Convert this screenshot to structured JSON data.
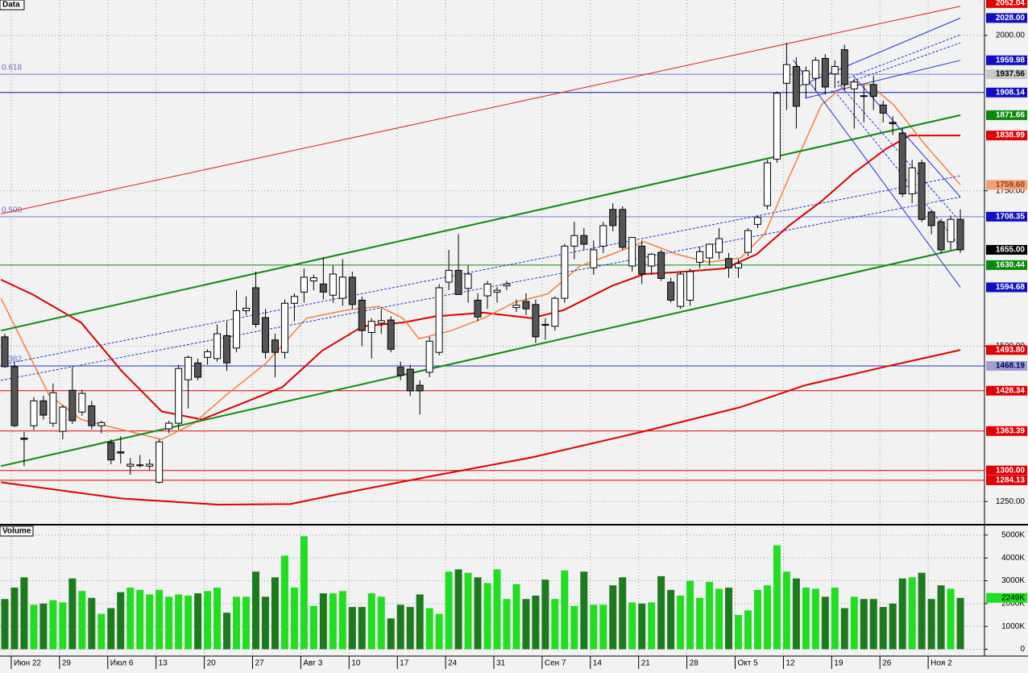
{
  "chart_data": [
    {
      "type": "candlestick",
      "title": "Data",
      "categories": [
        null,
        "Июн 22",
        null,
        null,
        null,
        null,
        "29",
        null,
        null,
        null,
        null,
        "Июл 6",
        null,
        null,
        null,
        null,
        "13",
        null,
        null,
        null,
        null,
        "20",
        null,
        null,
        null,
        null,
        "27",
        null,
        null,
        null,
        null,
        "Авг 3",
        null,
        null,
        null,
        null,
        "10",
        null,
        null,
        null,
        null,
        "17",
        null,
        null,
        null,
        null,
        "24",
        null,
        null,
        null,
        null,
        "31",
        null,
        null,
        null,
        null,
        "Сен 7",
        null,
        null,
        null,
        null,
        "14",
        null,
        null,
        null,
        null,
        "21",
        null,
        null,
        null,
        null,
        "28",
        null,
        null,
        null,
        null,
        "Окт 5",
        null,
        null,
        null,
        null,
        "12",
        null,
        null,
        null,
        null,
        "19",
        null,
        null,
        null,
        null,
        "26",
        null,
        null,
        null,
        null,
        "Ноя 2",
        null,
        null,
        null
      ],
      "open": [
        1515,
        1467,
        1352,
        1372,
        1412,
        1376,
        1363,
        1429,
        1394,
        1404,
        1372,
        1345,
        1330,
        1307,
        1308,
        1307,
        1281,
        1367,
        1376,
        1446,
        1473,
        1482,
        1480,
        1517,
        1497,
        1557,
        1594,
        1546,
        1510,
        1490,
        1569,
        1587,
        1605,
        1600,
        1582,
        1577,
        1611,
        1574,
        1522,
        1537,
        1542,
        1466,
        1463,
        1437,
        1458,
        1490,
        1603,
        1622,
        1593,
        1574,
        1581,
        1587,
        1597,
        1562,
        1572,
        1567,
        1535,
        1532,
        1577,
        1661,
        1678,
        1626,
        1661,
        1720,
        1720,
        1629,
        1661,
        1629,
        1651,
        1603,
        1564,
        1574,
        1635,
        1642,
        1651,
        1641,
        1626,
        1651,
        1696,
        1726,
        1801,
        1923,
        1950,
        1921,
        1931,
        1963,
        1938,
        1977,
        1914,
        1903,
        1921,
        1888,
        1860,
        1843,
        1745,
        1795,
        1716,
        1700,
        1668,
        1704
      ],
      "high": [
        1520,
        1473,
        1362,
        1418,
        1420,
        1440,
        1405,
        1466,
        1430,
        1412,
        1380,
        1350,
        1355,
        1320,
        1325,
        1318,
        1350,
        1380,
        1470,
        1485,
        1480,
        1495,
        1535,
        1540,
        1590,
        1580,
        1620,
        1560,
        1520,
        1575,
        1585,
        1625,
        1615,
        1643,
        1630,
        1640,
        1620,
        1580,
        1545,
        1560,
        1548,
        1475,
        1470,
        1445,
        1515,
        1600,
        1655,
        1680,
        1630,
        1585,
        1605,
        1595,
        1605,
        1575,
        1585,
        1575,
        1545,
        1580,
        1665,
        1700,
        1690,
        1670,
        1700,
        1730,
        1725,
        1675,
        1670,
        1650,
        1655,
        1610,
        1620,
        1625,
        1660,
        1665,
        1690,
        1650,
        1640,
        1690,
        1710,
        1800,
        1910,
        1988,
        1965,
        1950,
        1965,
        1970,
        1960,
        1985,
        1930,
        1920,
        1935,
        1895,
        1870,
        1850,
        1800,
        1800,
        1720,
        1705,
        1710,
        1720
      ],
      "low": [
        1465,
        1370,
        1307,
        1365,
        1382,
        1370,
        1350,
        1375,
        1388,
        1366,
        1360,
        1310,
        1311,
        1293,
        1305,
        1300,
        1279,
        1360,
        1365,
        1400,
        1445,
        1470,
        1475,
        1460,
        1490,
        1550,
        1530,
        1480,
        1450,
        1480,
        1540,
        1570,
        1590,
        1575,
        1570,
        1565,
        1560,
        1500,
        1480,
        1520,
        1490,
        1445,
        1420,
        1390,
        1450,
        1485,
        1590,
        1590,
        1570,
        1540,
        1560,
        1570,
        1590,
        1555,
        1550,
        1505,
        1510,
        1525,
        1570,
        1640,
        1655,
        1615,
        1650,
        1685,
        1655,
        1620,
        1600,
        1615,
        1605,
        1570,
        1560,
        1565,
        1625,
        1630,
        1640,
        1610,
        1610,
        1645,
        1690,
        1720,
        1795,
        1880,
        1850,
        1900,
        1910,
        1905,
        1915,
        1910,
        1850,
        1860,
        1880,
        1860,
        1840,
        1740,
        1730,
        1700,
        1680,
        1650,
        1655,
        1650
      ],
      "close": [
        1467,
        1372,
        1350,
        1412,
        1389,
        1425,
        1402,
        1380,
        1424,
        1372,
        1377,
        1317,
        1328,
        1310,
        1309,
        1310,
        1346,
        1376,
        1464,
        1482,
        1450,
        1491,
        1520,
        1473,
        1557,
        1561,
        1535,
        1490,
        1490,
        1569,
        1580,
        1611,
        1610,
        1587,
        1616,
        1611,
        1567,
        1525,
        1540,
        1541,
        1495,
        1453,
        1428,
        1428,
        1508,
        1594,
        1622,
        1583,
        1616,
        1547,
        1600,
        1590,
        1600,
        1566,
        1560,
        1515,
        1534,
        1577,
        1661,
        1678,
        1664,
        1655,
        1694,
        1694,
        1659,
        1675,
        1616,
        1648,
        1609,
        1574,
        1616,
        1620,
        1652,
        1664,
        1673,
        1626,
        1633,
        1686,
        1707,
        1795,
        1907,
        1953,
        1886,
        1943,
        1960,
        1917,
        1950,
        1921,
        1925,
        1902,
        1902,
        1875,
        1858,
        1745,
        1787,
        1704,
        1694,
        1655,
        1704,
        1655
      ],
      "up_color": "#ffffff",
      "down_color": "#555555",
      "xlim": [
        -0.5,
        101.5
      ],
      "ylim": [
        1214,
        2057
      ],
      "yticks": [
        {
          "value": 1250,
          "label": "1250.00"
        },
        {
          "value": 1500,
          "label": "1500.00"
        },
        {
          "value": 1750,
          "label": "1750.00"
        },
        {
          "value": 2000,
          "label": "2000.00"
        }
      ],
      "grid": true,
      "overlays": [
        {
          "color": "#dd0000",
          "width": 2,
          "x": [
            -0.4,
            12,
            22.1,
            29.6,
            34.6,
            44.6,
            54.6,
            66.25,
            76.25,
            82.9,
            91.25,
            99
          ],
          "values": [
            1281,
            1255,
            1245,
            1246,
            1262,
            1292,
            1321,
            1363,
            1402,
            1437,
            1467,
            1493.8
          ]
        },
        {
          "color": "#dd0000",
          "width": 2,
          "x": [
            -0.4,
            2.9,
            7.9,
            12.1,
            16.25,
            20.4,
            24.6,
            28.75,
            32.9,
            37.1,
            41.25,
            44.6,
            49.6,
            54.6,
            57.9,
            62.9,
            66.25,
            69.6,
            74.6,
            77.9,
            81.25,
            84.6,
            87.9,
            91.25,
            93.75,
            99
          ],
          "values": [
            1607,
            1583,
            1538,
            1460,
            1395,
            1382,
            1408,
            1434,
            1493,
            1532,
            1538,
            1548,
            1554,
            1545,
            1558,
            1597,
            1616,
            1619,
            1625,
            1648,
            1694,
            1733,
            1778,
            1817,
            1839,
            1838.99
          ]
        },
        {
          "color": "#f08040",
          "width": 1.5,
          "x": [
            -0.4,
            2.1,
            4.6,
            7.9,
            11.25,
            16.25,
            19.6,
            22.9,
            27.1,
            31.25,
            35.4,
            38.75,
            41.25,
            42.9,
            46.25,
            49.6,
            52.9,
            56.25,
            59.6,
            62.9,
            66.25,
            69.6,
            72.9,
            76.25,
            78.75,
            81.25,
            84.6,
            87.1,
            89.6,
            92.1,
            95.4,
            99
          ],
          "values": [
            1577,
            1499,
            1421,
            1382,
            1369,
            1350,
            1376,
            1421,
            1473,
            1545,
            1558,
            1564,
            1545,
            1512,
            1525,
            1545,
            1571,
            1584,
            1629,
            1648,
            1668,
            1648,
            1635,
            1642,
            1681,
            1772,
            1888,
            1921,
            1921,
            1888,
            1823,
            1759.6
          ]
        },
        {
          "color": "#dd2020",
          "width": 1,
          "x": [
            -0.4,
            99
          ],
          "values": [
            1713,
            2047
          ]
        },
        {
          "color": "#108a10",
          "width": 2,
          "x": [
            -0.4,
            99
          ],
          "values": [
            1525,
            1871.66
          ]
        },
        {
          "color": "#108a10",
          "width": 2,
          "x": [
            -0.4,
            99
          ],
          "values": [
            1307,
            1657
          ]
        },
        {
          "color": "#2030d0",
          "width": 1,
          "dash": true,
          "x": [
            -0.4,
            99
          ],
          "values": [
            1470,
            1774
          ]
        },
        {
          "color": "#2030d0",
          "width": 1,
          "dash": true,
          "x": [
            -0.4,
            99
          ],
          "values": [
            1445,
            1740
          ]
        },
        {
          "color": "#2030d0",
          "width": 1,
          "x": [
            82.1,
            99
          ],
          "values": [
            1917,
            2028
          ]
        },
        {
          "color": "#2030d0",
          "width": 1,
          "x": [
            82.9,
            99
          ],
          "values": [
            1899,
            1959.98
          ]
        },
        {
          "color": "#2030d0",
          "width": 1,
          "dash": true,
          "x": [
            86.25,
            99
          ],
          "values": [
            1925,
            2001
          ]
        },
        {
          "color": "#2030d0",
          "width": 1,
          "dash": true,
          "x": [
            86.25,
            99
          ],
          "values": [
            1918,
            1988
          ]
        },
        {
          "color": "#2030d0",
          "width": 1,
          "x": [
            81.7,
            99
          ],
          "values": [
            1960,
            1594.68
          ]
        },
        {
          "color": "#2030d0",
          "width": 1,
          "x": [
            87.9,
            99
          ],
          "values": [
            1935,
            1740
          ]
        },
        {
          "color": "#2030d0",
          "width": 1,
          "dash": true,
          "x": [
            86.25,
            99
          ],
          "values": [
            1925,
            1700
          ]
        },
        {
          "color": "#2030d0",
          "width": 1,
          "dash": true,
          "x": [
            86.25,
            99
          ],
          "values": [
            1905,
            1660
          ]
        }
      ],
      "levels": [
        {
          "value": 2052.04,
          "label": "2052.04",
          "color": "#e00000"
        },
        {
          "value": 2028,
          "label": "2028.00",
          "color": "#1010c0"
        },
        {
          "value": 1959.98,
          "label": "1959.98",
          "color": "#1010c0"
        },
        {
          "value": 1937.56,
          "label": "1937.56",
          "color": "#c8c8c8",
          "text_color": "#000000",
          "line_color": "#7a7ae0",
          "fib": "0.618"
        },
        {
          "value": 1908.14,
          "label": "1908.14",
          "color": "#1010c0",
          "line_color": "#1010c0"
        },
        {
          "value": 1871.66,
          "label": "1871.66",
          "color": "#0a8a0a"
        },
        {
          "value": 1838.99,
          "label": "1838.99",
          "color": "#e00000"
        },
        {
          "value": 1759.6,
          "label": "1759.60",
          "color": "#f4a070",
          "text_color": "#904020"
        },
        {
          "value": 1708.35,
          "label": "1708.35",
          "color": "#1010c0",
          "line_color": "#7a7ae0",
          "fib": "0.500"
        },
        {
          "value": 1655,
          "label": "1655.00",
          "color": "#000000"
        },
        {
          "value": 1630.44,
          "label": "1630.44",
          "color": "#0a8a0a",
          "line_color": "#0a8a0a"
        },
        {
          "value": 1594.68,
          "label": "1594.68",
          "color": "#1010c0"
        },
        {
          "value": 1493.8,
          "label": "1493.80",
          "color": "#e00000"
        },
        {
          "value": 1468.19,
          "label": "1468.19",
          "color": "#a0a0d0",
          "text_color": "#000060",
          "line_color": "#2030d0",
          "fib": "0.382"
        },
        {
          "value": 1428.34,
          "label": "1428.34",
          "color": "#e00000",
          "line_color": "#e00000"
        },
        {
          "value": 1363.39,
          "label": "1363.39",
          "color": "#e00000",
          "line_color": "#e00000"
        },
        {
          "value": 1300,
          "label": "1300.00",
          "color": "#e00000",
          "line_color": "#e00000"
        },
        {
          "value": 1284.13,
          "label": "1284.13",
          "color": "#e00000",
          "line_color": "#e00000"
        }
      ]
    },
    {
      "type": "bar",
      "title": "Volume",
      "values": [
        2200,
        2700,
        3150,
        1950,
        2000,
        2150,
        2050,
        3100,
        2550,
        2250,
        1550,
        1800,
        2500,
        2700,
        2600,
        2400,
        2600,
        2300,
        2400,
        2350,
        2450,
        2550,
        2700,
        1600,
        2300,
        2300,
        3400,
        2300,
        3150,
        4100,
        2700,
        4950,
        1900,
        2450,
        2450,
        2550,
        1850,
        1850,
        2450,
        2300,
        1350,
        1950,
        1850,
        2400,
        1800,
        1550,
        3400,
        3500,
        3350,
        3150,
        2900,
        3500,
        2200,
        2850,
        2200,
        2350,
        3050,
        2200,
        3450,
        1900,
        3400,
        1950,
        1950,
        2800,
        3150,
        2050,
        2000,
        2050,
        3200,
        2600,
        2350,
        3000,
        2250,
        2950,
        2650,
        2700,
        1500,
        1700,
        2600,
        2800,
        4550,
        3400,
        3100,
        2700,
        2650,
        2300,
        2700,
        1800,
        2300,
        2200,
        2200,
        1850,
        2000,
        3100,
        3150,
        3350,
        2200,
        2800,
        2650,
        2249
      ],
      "last_label": "2249K",
      "up_color": "#22dd22",
      "down_color": "#1e7a1e",
      "xlim": [
        -0.5,
        101.5
      ],
      "ylim": [
        -300,
        5350
      ],
      "yticks": [
        0,
        {
          "value": 1000,
          "label": "1000K"
        },
        {
          "value": 2000,
          "label": "2000K"
        },
        {
          "value": 3000,
          "label": "3000K"
        },
        {
          "value": 4000,
          "label": "4000K"
        },
        {
          "value": 5000,
          "label": "5000K"
        }
      ]
    }
  ]
}
